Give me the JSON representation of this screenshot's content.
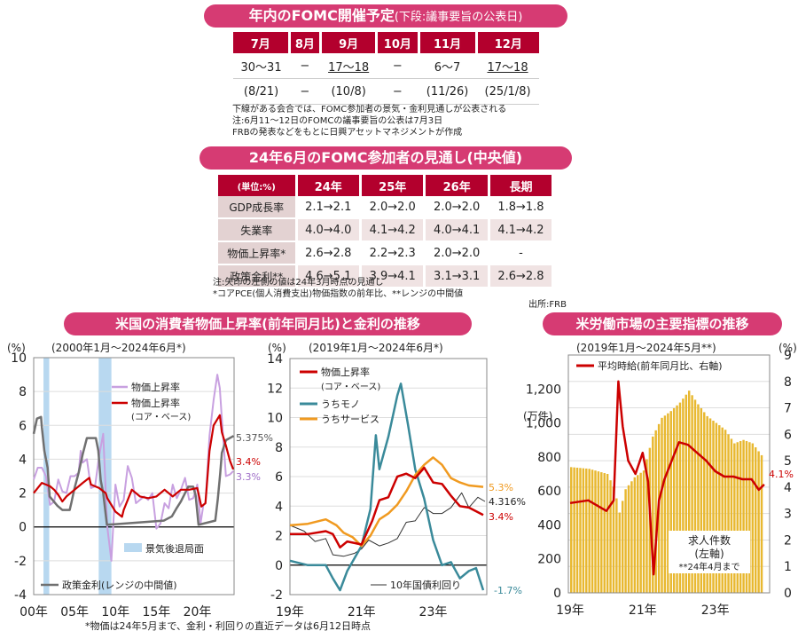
{
  "top_table": {
    "title": "年内のFOMC開催予定",
    "subtitle": "(下段:議事要旨の公表日)",
    "headers": [
      "7月",
      "8月",
      "9月",
      "10月",
      "11月",
      "12月"
    ],
    "row1": [
      "30〜31",
      "−",
      "17〜18",
      "−",
      "6〜7",
      "17〜18"
    ],
    "row2": [
      "(8/21)",
      "−",
      "(10/8)",
      "−",
      "(11/26)",
      "(25/1/8)"
    ],
    "notes": [
      "下線がある会合では、FOMC参加者の景気・金利見通しが公表される",
      "注:6月11〜12日のFOMCの議事要旨の公表は7月3日",
      "FRBの発表などをもとに日興アセットマネジメントが作成"
    ]
  },
  "mid_table": {
    "title": "24年6月のFOMC参加者の見通し(中央値)",
    "headers": [
      "(単位:%)",
      "24年",
      "25年",
      "26年",
      "長期"
    ],
    "rows": [
      [
        "GDP成長率",
        "2.1→2.1",
        "2.0→2.0",
        "2.0→2.0",
        "1.8→1.8"
      ],
      [
        "失業率",
        "4.0→4.0",
        "4.1→4.2",
        "4.0→4.1",
        "4.1→4.2"
      ],
      [
        "物価上昇率*",
        "2.6→2.8",
        "2.2→2.3",
        "2.0→2.0",
        "-"
      ],
      [
        "政策金利**",
        "4.6→5.1",
        "3.9→4.1",
        "3.1→3.1",
        "2.6→2.8"
      ]
    ],
    "notes": [
      "注:矢印の左側の値は24年3月時点の見通し",
      "*コアPCE(個人消費支出)物価指数の前年比、**レンジの中間値"
    ],
    "source": "出所:FRB"
  },
  "section_titles": {
    "left": "米国の消費者物価上昇率(前年同月比)と金利の推移",
    "right": "米労働市場の主要指標の推移"
  },
  "bottom_note": "*物価は24年5月まで、金利・利回りの直近データは6月12日時点",
  "colors": {
    "banner": "#d63b73",
    "header": "#b3002d",
    "cpi": "#c8a0e0",
    "core": "#cc0000",
    "policy": "#707070",
    "recession": "#b8d8f0",
    "goods": "#3a8a9a",
    "services": "#f09a20",
    "jgb": "#333333",
    "bars": "#e8b830",
    "wage": "#cc0000"
  },
  "chart_data": [
    {
      "type": "line",
      "unit": "(%)",
      "period": "(2000年1月〜2024年6月*)",
      "ylim": [
        -4,
        10
      ],
      "yticks": [
        "10",
        "8",
        "6",
        "4",
        "2",
        "0",
        "-2",
        "-4"
      ],
      "xticks": [
        "00年",
        "05年",
        "10年",
        "15年",
        "20年"
      ],
      "xrange": [
        2000,
        2024.5
      ],
      "legend": [
        "物価上昇率",
        "物価上昇率",
        "(コア・ベース)",
        "景気後退局面",
        "政策金利(レンジの中間値)"
      ],
      "end_labels": [
        "5.375%",
        "3.4%",
        "3.3%"
      ],
      "recessions": [
        [
          2001.2,
          2001.9
        ],
        [
          2007.95,
          2009.5
        ]
      ],
      "series": [
        {
          "name": "物価上昇率",
          "x": [
            2000,
            2000.5,
            2001,
            2001.5,
            2002,
            2002.5,
            2003,
            2003.5,
            2004,
            2004.5,
            2005,
            2005.5,
            2005.75,
            2006,
            2006.5,
            2007,
            2007.5,
            2008,
            2008.5,
            2009,
            2009.5,
            2010,
            2010.5,
            2011,
            2011.5,
            2012,
            2012.5,
            2013,
            2013.5,
            2014,
            2014.5,
            2015,
            2015.5,
            2016,
            2016.5,
            2017,
            2017.5,
            2018,
            2018.5,
            2019,
            2019.5,
            2020,
            2020.4,
            2020.75,
            2021,
            2021.5,
            2022,
            2022.45,
            2022.75,
            2023,
            2023.5,
            2024,
            2024.4
          ],
          "values": [
            2.8,
            3.5,
            3.5,
            3.0,
            1.3,
            1.5,
            2.8,
            2.1,
            2.0,
            3.0,
            3.0,
            3.2,
            4.5,
            3.8,
            4.0,
            2.3,
            2.4,
            4.2,
            5.5,
            0.0,
            -2.0,
            2.5,
            1.2,
            1.6,
            3.6,
            2.9,
            1.4,
            1.6,
            1.8,
            1.6,
            2.0,
            -0.1,
            0.2,
            1.4,
            1.1,
            2.5,
            1.7,
            2.2,
            2.9,
            1.6,
            1.7,
            2.5,
            0.2,
            1.3,
            1.4,
            5.4,
            7.5,
            9.0,
            8.2,
            6.4,
            3.0,
            3.1,
            3.3
          ]
        },
        {
          "name": "物価上昇率(コア・ベース)",
          "x": [
            2000,
            2001,
            2002,
            2002.5,
            2003,
            2003.5,
            2004,
            2005,
            2006,
            2006.8,
            2007,
            2008,
            2008.8,
            2009,
            2010,
            2010.8,
            2011,
            2012,
            2013,
            2014,
            2015,
            2016,
            2017,
            2018,
            2019,
            2020,
            2020.5,
            2021,
            2021.5,
            2022,
            2022.75,
            2023,
            2023.5,
            2024,
            2024.4
          ],
          "values": [
            2.0,
            2.6,
            2.4,
            2.2,
            1.9,
            1.5,
            1.8,
            2.2,
            2.6,
            2.9,
            2.5,
            2.3,
            2.0,
            1.7,
            0.9,
            0.6,
            1.0,
            2.2,
            1.8,
            1.7,
            1.8,
            2.2,
            1.8,
            2.2,
            2.2,
            2.3,
            1.2,
            1.4,
            4.5,
            6.0,
            6.6,
            5.6,
            4.8,
            3.9,
            3.4
          ]
        },
        {
          "name": "政策金利(レンジの中間値)",
          "x": [
            2000,
            2000.4,
            2000.9,
            2001,
            2001.3,
            2001.7,
            2001.95,
            2002.9,
            2003.5,
            2004.4,
            2004.6,
            2005,
            2005.5,
            2006,
            2006.5,
            2007.6,
            2007.9,
            2008.2,
            2008.5,
            2008.95,
            2015.9,
            2016.9,
            2017.5,
            2018,
            2018.9,
            2019.5,
            2019.8,
            2020.15,
            2022.2,
            2022.5,
            2022.8,
            2023,
            2023.5,
            2024.45
          ],
          "values": [
            5.5,
            6.4,
            6.5,
            5.9,
            4.5,
            3.5,
            1.8,
            1.25,
            1.0,
            1.0,
            1.4,
            2.3,
            3.2,
            4.3,
            5.25,
            5.25,
            4.5,
            2.75,
            2.0,
            0.125,
            0.375,
            0.625,
            1.125,
            1.5,
            2.375,
            2.375,
            1.875,
            0.125,
            0.375,
            1.625,
            3.125,
            4.375,
            5.125,
            5.375
          ]
        }
      ]
    },
    {
      "type": "line",
      "unit": "(%)",
      "period": "(2019年1月〜2024年6月*)",
      "ylim": [
        -2,
        14
      ],
      "yticks": [
        "14",
        "12",
        "10",
        "8",
        "6",
        "4",
        "2",
        "0",
        "-2"
      ],
      "xticks": [
        "19年",
        "21年",
        "23年"
      ],
      "xrange": [
        2019,
        2024.5
      ],
      "legend": [
        "物価上昇率",
        "(コア・ベース)",
        "うちモノ",
        "うちサービス",
        "10年国債利回り"
      ],
      "end_labels": [
        "5.3%",
        "4.316%",
        "3.4%",
        "-1.7%"
      ],
      "series": [
        {
          "name": "物価上昇率(コア・ベース)",
          "x": [
            2019,
            2019.5,
            2020,
            2020.2,
            2020.4,
            2020.6,
            2021,
            2021.3,
            2021.5,
            2021.75,
            2022,
            2022.25,
            2022.5,
            2022.75,
            2023,
            2023.25,
            2023.5,
            2023.75,
            2024,
            2024.4
          ],
          "values": [
            2.1,
            2.1,
            2.3,
            2.1,
            1.2,
            1.6,
            1.4,
            3.0,
            4.4,
            4.6,
            6.0,
            6.2,
            5.9,
            6.6,
            5.6,
            5.5,
            4.7,
            4.0,
            3.9,
            3.4
          ]
        },
        {
          "name": "うちモノ",
          "x": [
            2019,
            2019.5,
            2020,
            2020.2,
            2020.4,
            2020.6,
            2021,
            2021.25,
            2021.4,
            2021.5,
            2021.75,
            2022,
            2022.1,
            2022.3,
            2022.5,
            2022.75,
            2023,
            2023.25,
            2023.5,
            2023.75,
            2024,
            2024.2,
            2024.4
          ],
          "values": [
            0.3,
            0.0,
            0.0,
            -0.9,
            -1.7,
            -0.4,
            1.3,
            3.8,
            8.8,
            6.5,
            8.7,
            11.5,
            12.3,
            9.5,
            6.5,
            4.5,
            1.7,
            0.0,
            0.2,
            -0.9,
            -0.4,
            -0.2,
            -1.7
          ]
        },
        {
          "name": "うちサービス",
          "x": [
            2019,
            2019.5,
            2020,
            2020.3,
            2020.5,
            2020.75,
            2021,
            2021.25,
            2021.5,
            2021.75,
            2022,
            2022.25,
            2022.5,
            2022.75,
            2023,
            2023.25,
            2023.5,
            2023.75,
            2024,
            2024.4
          ],
          "values": [
            2.7,
            2.8,
            3.1,
            2.7,
            2.2,
            1.9,
            1.3,
            2.0,
            3.1,
            3.5,
            4.1,
            5.0,
            6.1,
            6.8,
            7.3,
            6.8,
            5.9,
            5.6,
            5.4,
            5.3
          ]
        },
        {
          "name": "10年国債利回り",
          "x": [
            2019,
            2019.4,
            2019.7,
            2020,
            2020.2,
            2020.5,
            2020.8,
            2021,
            2021.2,
            2021.5,
            2021.75,
            2022,
            2022.25,
            2022.5,
            2022.75,
            2023,
            2023.25,
            2023.5,
            2023.8,
            2024,
            2024.25,
            2024.45
          ],
          "values": [
            2.7,
            2.3,
            1.6,
            1.8,
            0.7,
            0.6,
            0.8,
            1.1,
            1.7,
            1.3,
            1.5,
            1.8,
            2.9,
            3.0,
            3.9,
            3.5,
            3.5,
            3.9,
            4.9,
            3.9,
            4.6,
            4.316
          ]
        }
      ]
    },
    {
      "type": "bar+line",
      "unit_left": "(万件)",
      "unit_right": "(%)",
      "period": "(2019年1月〜2024年5月**)",
      "ylim_left": [
        0,
        1400
      ],
      "ylim_right": [
        0,
        9
      ],
      "yticks_left": [
        "1,200",
        "1,000",
        "800",
        "600",
        "400",
        "200",
        "0"
      ],
      "yticks_right": [
        "9",
        "8",
        "7",
        "6",
        "5",
        "4",
        "3",
        "2",
        "1",
        "0"
      ],
      "xticks": [
        "19年",
        "21年",
        "23年"
      ],
      "xrange": [
        2019,
        2024.45
      ],
      "legend": [
        "平均時給(前年同月比、右軸)"
      ],
      "bar_label": [
        "求人件数",
        "(左軸)",
        "**24年4月まで"
      ],
      "end_labels": [
        "4.1%"
      ],
      "bars": {
        "name": "求人件数",
        "x": [
          2019,
          2019.5,
          2020,
          2020.2,
          2020.33,
          2020.5,
          2020.75,
          2021,
          2021.25,
          2021.5,
          2021.75,
          2022,
          2022.25,
          2022.5,
          2022.75,
          2023,
          2023.25,
          2023.5,
          2023.75,
          2024,
          2024.25
        ],
        "values": [
          740,
          730,
          700,
          610,
          470,
          610,
          680,
          720,
          920,
          1030,
          1070,
          1120,
          1190,
          1110,
          1040,
          1000,
          960,
          880,
          900,
          880,
          810
        ]
      },
      "series": [
        {
          "name": "平均時給(前年同月比、右軸)",
          "x": [
            2019,
            2019.5,
            2020,
            2020.2,
            2020.33,
            2020.45,
            2020.6,
            2020.8,
            2021,
            2021.15,
            2021.3,
            2021.45,
            2021.6,
            2021.8,
            2022,
            2022.25,
            2022.5,
            2022.75,
            2023,
            2023.25,
            2023.5,
            2023.75,
            2024,
            2024.2,
            2024.35
          ],
          "values": [
            3.4,
            3.5,
            3.1,
            3.5,
            8.0,
            6.3,
            5.0,
            4.5,
            5.3,
            4.2,
            0.7,
            3.5,
            4.3,
            5.0,
            5.7,
            5.6,
            5.3,
            5.0,
            4.6,
            4.4,
            4.4,
            4.3,
            4.3,
            3.9,
            4.1
          ]
        }
      ]
    }
  ]
}
